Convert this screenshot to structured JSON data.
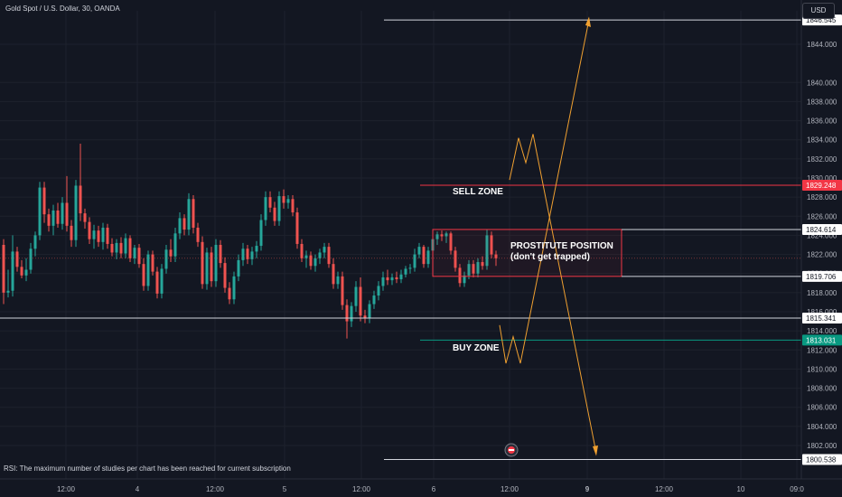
{
  "header": {
    "title": "Gold Spot / U.S. Dollar, 30, OANDA",
    "currency": "USD"
  },
  "notice": "RSI: The maximum number of studies per chart has been reached for current subscription",
  "colors": {
    "background": "#131722",
    "up": "#26a69a",
    "down": "#ef5350",
    "annotation": "#f0a030",
    "sell_line": "#f23645",
    "buy_line": "#089981"
  },
  "chart_data": {
    "type": "candlestick",
    "price_axis": {
      "range": [
        1798.5,
        1847.5
      ],
      "ticks": [
        "1802.000",
        "1804.000",
        "1806.000",
        "1808.000",
        "1810.000",
        "1812.000",
        "1814.000",
        "1816.000",
        "1818.000",
        "1820.000",
        "1822.000",
        "1824.000",
        "1826.000",
        "1828.000",
        "1830.000",
        "1832.000",
        "1834.000",
        "1836.000",
        "1838.000",
        "1840.000",
        "1844.000"
      ]
    },
    "time_axis": {
      "labels": [
        "12:00",
        "4",
        "12:00",
        "5",
        "12:00",
        "6",
        "12:00",
        "9",
        "12:00",
        "10",
        "09:0"
      ]
    },
    "price_tags": [
      {
        "label": "1846.545",
        "price": 1846.545,
        "style": "white"
      },
      {
        "label": "1829.248",
        "price": 1829.248,
        "style": "red"
      },
      {
        "label": "1824.614",
        "price": 1824.614,
        "style": "white"
      },
      {
        "label": "1819.706",
        "price": 1819.706,
        "style": "white"
      },
      {
        "label": "1815.341",
        "price": 1815.341,
        "style": "white"
      },
      {
        "label": "1813.031",
        "price": 1813.031,
        "style": "green"
      },
      {
        "label": "1800.538",
        "price": 1800.538,
        "style": "white"
      }
    ],
    "annotations": {
      "sell_zone": "SELL ZONE",
      "buy_zone": "BUY ZONE",
      "position_line1": "PROSTITUTE POSITION",
      "position_line2": "(don't get trapped)"
    },
    "series": [
      {
        "o": 1823.0,
        "h": 1823.6,
        "l": 1816.8,
        "c": 1818.0
      },
      {
        "o": 1818.0,
        "h": 1820.4,
        "l": 1817.5,
        "c": 1818.2
      },
      {
        "o": 1818.2,
        "h": 1824.0,
        "l": 1817.6,
        "c": 1822.3
      },
      {
        "o": 1822.3,
        "h": 1822.8,
        "l": 1820.2,
        "c": 1820.7
      },
      {
        "o": 1820.7,
        "h": 1821.4,
        "l": 1819.5,
        "c": 1819.8
      },
      {
        "o": 1819.8,
        "h": 1821.6,
        "l": 1819.2,
        "c": 1820.4
      },
      {
        "o": 1820.4,
        "h": 1823.2,
        "l": 1820.0,
        "c": 1822.6
      },
      {
        "o": 1822.6,
        "h": 1824.4,
        "l": 1821.8,
        "c": 1824.0
      },
      {
        "o": 1824.0,
        "h": 1829.6,
        "l": 1823.5,
        "c": 1829.0
      },
      {
        "o": 1829.0,
        "h": 1829.6,
        "l": 1825.3,
        "c": 1826.2
      },
      {
        "o": 1826.2,
        "h": 1826.8,
        "l": 1824.4,
        "c": 1825.0
      },
      {
        "o": 1825.0,
        "h": 1827.2,
        "l": 1824.0,
        "c": 1826.6
      },
      {
        "o": 1826.6,
        "h": 1827.4,
        "l": 1824.8,
        "c": 1825.2
      },
      {
        "o": 1825.2,
        "h": 1828.0,
        "l": 1824.6,
        "c": 1827.4
      },
      {
        "o": 1827.4,
        "h": 1830.2,
        "l": 1824.4,
        "c": 1825.0
      },
      {
        "o": 1825.0,
        "h": 1825.6,
        "l": 1822.8,
        "c": 1823.5
      },
      {
        "o": 1823.5,
        "h": 1829.8,
        "l": 1822.8,
        "c": 1829.2
      },
      {
        "o": 1829.2,
        "h": 1833.6,
        "l": 1825.5,
        "c": 1826.3
      },
      {
        "o": 1826.3,
        "h": 1826.8,
        "l": 1824.7,
        "c": 1825.4
      },
      {
        "o": 1825.4,
        "h": 1825.9,
        "l": 1823.1,
        "c": 1823.6
      },
      {
        "o": 1823.6,
        "h": 1825.1,
        "l": 1822.6,
        "c": 1824.5
      },
      {
        "o": 1824.5,
        "h": 1825.0,
        "l": 1822.8,
        "c": 1823.3
      },
      {
        "o": 1823.3,
        "h": 1825.3,
        "l": 1822.5,
        "c": 1824.8
      },
      {
        "o": 1824.8,
        "h": 1825.2,
        "l": 1822.6,
        "c": 1823.1
      },
      {
        "o": 1823.1,
        "h": 1823.7,
        "l": 1821.8,
        "c": 1822.2
      },
      {
        "o": 1822.2,
        "h": 1823.6,
        "l": 1821.5,
        "c": 1823.2
      },
      {
        "o": 1823.2,
        "h": 1823.8,
        "l": 1821.6,
        "c": 1822.1
      },
      {
        "o": 1822.1,
        "h": 1824.2,
        "l": 1821.6,
        "c": 1823.7
      },
      {
        "o": 1823.7,
        "h": 1824.0,
        "l": 1821.2,
        "c": 1821.6
      },
      {
        "o": 1821.6,
        "h": 1823.0,
        "l": 1821.0,
        "c": 1822.7
      },
      {
        "o": 1822.7,
        "h": 1823.1,
        "l": 1820.6,
        "c": 1821.0
      },
      {
        "o": 1821.0,
        "h": 1821.6,
        "l": 1818.2,
        "c": 1818.7
      },
      {
        "o": 1818.7,
        "h": 1822.4,
        "l": 1818.2,
        "c": 1822.0
      },
      {
        "o": 1822.0,
        "h": 1822.4,
        "l": 1819.8,
        "c": 1820.2
      },
      {
        "o": 1820.2,
        "h": 1820.7,
        "l": 1817.4,
        "c": 1817.9
      },
      {
        "o": 1817.9,
        "h": 1821.0,
        "l": 1817.4,
        "c": 1820.5
      },
      {
        "o": 1820.5,
        "h": 1823.0,
        "l": 1820.0,
        "c": 1822.5
      },
      {
        "o": 1822.5,
        "h": 1823.6,
        "l": 1821.2,
        "c": 1821.8
      },
      {
        "o": 1821.8,
        "h": 1824.8,
        "l": 1821.2,
        "c": 1824.2
      },
      {
        "o": 1824.2,
        "h": 1826.4,
        "l": 1823.6,
        "c": 1825.8
      },
      {
        "o": 1825.8,
        "h": 1826.2,
        "l": 1824.0,
        "c": 1824.6
      },
      {
        "o": 1824.6,
        "h": 1828.4,
        "l": 1824.0,
        "c": 1827.8
      },
      {
        "o": 1827.8,
        "h": 1828.2,
        "l": 1824.2,
        "c": 1824.8
      },
      {
        "o": 1824.8,
        "h": 1825.3,
        "l": 1822.8,
        "c": 1823.3
      },
      {
        "o": 1823.3,
        "h": 1823.9,
        "l": 1818.4,
        "c": 1818.9
      },
      {
        "o": 1818.9,
        "h": 1822.7,
        "l": 1818.3,
        "c": 1822.2
      },
      {
        "o": 1822.2,
        "h": 1822.8,
        "l": 1818.6,
        "c": 1819.2
      },
      {
        "o": 1819.2,
        "h": 1823.6,
        "l": 1818.6,
        "c": 1823.0
      },
      {
        "o": 1823.0,
        "h": 1823.5,
        "l": 1820.6,
        "c": 1821.1
      },
      {
        "o": 1821.1,
        "h": 1821.7,
        "l": 1818.0,
        "c": 1818.5
      },
      {
        "o": 1818.5,
        "h": 1819.1,
        "l": 1816.8,
        "c": 1817.3
      },
      {
        "o": 1817.3,
        "h": 1820.2,
        "l": 1816.8,
        "c": 1819.7
      },
      {
        "o": 1819.7,
        "h": 1822.0,
        "l": 1819.2,
        "c": 1821.4
      },
      {
        "o": 1821.4,
        "h": 1823.2,
        "l": 1820.8,
        "c": 1822.6
      },
      {
        "o": 1822.6,
        "h": 1823.0,
        "l": 1821.0,
        "c": 1821.5
      },
      {
        "o": 1821.5,
        "h": 1822.8,
        "l": 1820.9,
        "c": 1822.3
      },
      {
        "o": 1822.3,
        "h": 1823.4,
        "l": 1821.6,
        "c": 1822.9
      },
      {
        "o": 1822.9,
        "h": 1826.2,
        "l": 1822.4,
        "c": 1825.6
      },
      {
        "o": 1825.6,
        "h": 1828.6,
        "l": 1825.0,
        "c": 1828.0
      },
      {
        "o": 1828.0,
        "h": 1828.6,
        "l": 1826.4,
        "c": 1826.9
      },
      {
        "o": 1826.9,
        "h": 1827.5,
        "l": 1825.0,
        "c": 1825.5
      },
      {
        "o": 1825.5,
        "h": 1828.6,
        "l": 1825.0,
        "c": 1828.1
      },
      {
        "o": 1828.1,
        "h": 1828.8,
        "l": 1826.8,
        "c": 1827.4
      },
      {
        "o": 1827.4,
        "h": 1828.2,
        "l": 1826.8,
        "c": 1827.8
      },
      {
        "o": 1827.8,
        "h": 1828.2,
        "l": 1826.0,
        "c": 1826.4
      },
      {
        "o": 1826.4,
        "h": 1826.9,
        "l": 1822.6,
        "c": 1823.1
      },
      {
        "o": 1823.1,
        "h": 1823.6,
        "l": 1821.2,
        "c": 1821.6
      },
      {
        "o": 1821.6,
        "h": 1822.4,
        "l": 1820.6,
        "c": 1821.9
      },
      {
        "o": 1821.9,
        "h": 1822.3,
        "l": 1820.4,
        "c": 1820.8
      },
      {
        "o": 1820.8,
        "h": 1822.0,
        "l": 1820.2,
        "c": 1821.6
      },
      {
        "o": 1821.6,
        "h": 1822.6,
        "l": 1821.0,
        "c": 1822.2
      },
      {
        "o": 1822.2,
        "h": 1823.2,
        "l": 1821.6,
        "c": 1822.8
      },
      {
        "o": 1822.8,
        "h": 1823.2,
        "l": 1820.6,
        "c": 1821.0
      },
      {
        "o": 1821.0,
        "h": 1821.6,
        "l": 1818.4,
        "c": 1818.9
      },
      {
        "o": 1818.9,
        "h": 1820.2,
        "l": 1818.4,
        "c": 1819.7
      },
      {
        "o": 1819.7,
        "h": 1820.2,
        "l": 1816.2,
        "c": 1816.7
      },
      {
        "o": 1816.7,
        "h": 1817.3,
        "l": 1813.2,
        "c": 1815.0
      },
      {
        "o": 1815.0,
        "h": 1817.0,
        "l": 1814.4,
        "c": 1816.6
      },
      {
        "o": 1816.6,
        "h": 1819.2,
        "l": 1816.0,
        "c": 1818.6
      },
      {
        "o": 1818.6,
        "h": 1819.6,
        "l": 1815.0,
        "c": 1815.6
      },
      {
        "o": 1815.6,
        "h": 1816.2,
        "l": 1814.8,
        "c": 1815.3
      },
      {
        "o": 1815.3,
        "h": 1817.2,
        "l": 1814.8,
        "c": 1816.8
      },
      {
        "o": 1816.8,
        "h": 1818.2,
        "l": 1816.3,
        "c": 1817.7
      },
      {
        "o": 1817.7,
        "h": 1819.2,
        "l": 1817.2,
        "c": 1818.7
      },
      {
        "o": 1818.7,
        "h": 1820.2,
        "l": 1818.2,
        "c": 1819.6
      },
      {
        "o": 1819.6,
        "h": 1820.4,
        "l": 1818.8,
        "c": 1819.3
      },
      {
        "o": 1819.3,
        "h": 1820.0,
        "l": 1818.8,
        "c": 1819.6
      },
      {
        "o": 1819.6,
        "h": 1820.2,
        "l": 1819.0,
        "c": 1819.4
      },
      {
        "o": 1819.4,
        "h": 1820.4,
        "l": 1819.0,
        "c": 1819.9
      },
      {
        "o": 1819.9,
        "h": 1820.8,
        "l": 1819.6,
        "c": 1820.5
      },
      {
        "o": 1820.5,
        "h": 1821.0,
        "l": 1820.0,
        "c": 1820.6
      },
      {
        "o": 1820.6,
        "h": 1822.6,
        "l": 1820.2,
        "c": 1822.0
      },
      {
        "o": 1822.0,
        "h": 1823.2,
        "l": 1821.6,
        "c": 1822.8
      },
      {
        "o": 1822.8,
        "h": 1823.0,
        "l": 1820.6,
        "c": 1821.0
      },
      {
        "o": 1821.0,
        "h": 1822.8,
        "l": 1820.6,
        "c": 1822.4
      },
      {
        "o": 1822.4,
        "h": 1824.0,
        "l": 1822.0,
        "c": 1823.6
      },
      {
        "o": 1823.6,
        "h": 1824.4,
        "l": 1823.0,
        "c": 1824.1
      },
      {
        "o": 1824.1,
        "h": 1824.5,
        "l": 1823.4,
        "c": 1823.9
      },
      {
        "o": 1823.9,
        "h": 1824.4,
        "l": 1823.2,
        "c": 1824.2
      },
      {
        "o": 1824.2,
        "h": 1824.4,
        "l": 1822.0,
        "c": 1822.4
      },
      {
        "o": 1822.4,
        "h": 1822.8,
        "l": 1820.2,
        "c": 1820.6
      },
      {
        "o": 1820.6,
        "h": 1821.0,
        "l": 1818.6,
        "c": 1819.0
      },
      {
        "o": 1819.0,
        "h": 1820.2,
        "l": 1818.6,
        "c": 1819.8
      },
      {
        "o": 1819.8,
        "h": 1821.4,
        "l": 1819.4,
        "c": 1821.0
      },
      {
        "o": 1821.0,
        "h": 1821.4,
        "l": 1819.6,
        "c": 1820.0
      },
      {
        "o": 1820.0,
        "h": 1821.6,
        "l": 1819.6,
        "c": 1821.2
      },
      {
        "o": 1821.2,
        "h": 1821.8,
        "l": 1820.4,
        "c": 1820.8
      },
      {
        "o": 1820.8,
        "h": 1824.6,
        "l": 1820.4,
        "c": 1824.0
      },
      {
        "o": 1824.0,
        "h": 1824.4,
        "l": 1821.6,
        "c": 1822.0
      },
      {
        "o": 1822.0,
        "h": 1822.4,
        "l": 1820.8,
        "c": 1821.6
      }
    ]
  }
}
